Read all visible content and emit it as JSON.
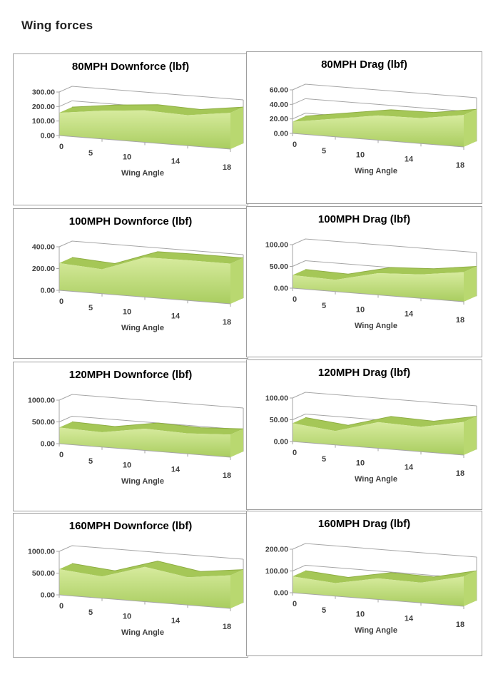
{
  "page": {
    "title": "Wing forces"
  },
  "shared": {
    "x_label": "Wing Angle",
    "categories": [
      "0",
      "5",
      "10",
      "14",
      "18"
    ]
  },
  "colors": {
    "grid": "#a6a6a6",
    "border": "#9e9e9e",
    "area_top": "#a5c757",
    "area_edge": "#8fae44",
    "cap": "#b9d870",
    "face_top": "#d7eb9e",
    "face_bottom": "#a9cd5f",
    "label_text": "#404040",
    "title_text": "#000000"
  },
  "chart_data": [
    {
      "type": "area",
      "title": "80MPH Downforce (lbf)",
      "xlabel": "Wing Angle",
      "categories": [
        0,
        5,
        10,
        14,
        18
      ],
      "values": [
        157,
        194,
        220,
        210,
        250
      ],
      "ylim": [
        0,
        300
      ],
      "yticks": [
        0,
        100,
        200,
        300
      ],
      "ytick_labels": [
        "0.00",
        "100.00",
        "200.00",
        "300.00"
      ]
    },
    {
      "type": "area",
      "title": "80MPH Drag (lbf)",
      "xlabel": "Wing Angle",
      "categories": [
        0,
        5,
        10,
        14,
        18
      ],
      "values": [
        16,
        25,
        34,
        35,
        44
      ],
      "ylim": [
        0,
        60
      ],
      "yticks": [
        0,
        20,
        40,
        60
      ],
      "ytick_labels": [
        "0.00",
        "20.00",
        "40.00",
        "60.00"
      ]
    },
    {
      "type": "area",
      "title": "100MPH Downforce (lbf)",
      "xlabel": "Wing Angle",
      "categories": [
        0,
        5,
        10,
        14,
        18
      ],
      "values": [
        250,
        225,
        365,
        370,
        370
      ],
      "ylim": [
        0,
        400
      ],
      "yticks": [
        0,
        200,
        400
      ],
      "ytick_labels": [
        "0.00",
        "200.00",
        "400.00"
      ]
    },
    {
      "type": "area",
      "title": "100MPH Drag (lbf)",
      "xlabel": "Wing Angle",
      "categories": [
        0,
        5,
        10,
        14,
        18
      ],
      "values": [
        30,
        27,
        50,
        55,
        68
      ],
      "ylim": [
        0,
        100
      ],
      "yticks": [
        0,
        50,
        100
      ],
      "ytick_labels": [
        "0.00",
        "50.00",
        "100.00"
      ]
    },
    {
      "type": "area",
      "title": "120MPH Downforce (lbf)",
      "xlabel": "Wing Angle",
      "categories": [
        0,
        5,
        10,
        14,
        18
      ],
      "values": [
        370,
        340,
        500,
        470,
        520
      ],
      "ylim": [
        0,
        1000
      ],
      "yticks": [
        0,
        500,
        1000
      ],
      "ytick_labels": [
        "0.00",
        "500.00",
        "1000.00"
      ]
    },
    {
      "type": "area",
      "title": "120MPH Drag (lbf)",
      "xlabel": "Wing Angle",
      "categories": [
        0,
        5,
        10,
        14,
        18
      ],
      "values": [
        42,
        32,
        60,
        57,
        76
      ],
      "ylim": [
        0,
        100
      ],
      "yticks": [
        0,
        50,
        100
      ],
      "ytick_labels": [
        "0.00",
        "50.00",
        "100.00"
      ]
    },
    {
      "type": "area",
      "title": "160MPH Downforce (lbf)",
      "xlabel": "Wing Angle",
      "categories": [
        0,
        5,
        10,
        14,
        18
      ],
      "values": [
        590,
        500,
        800,
        640,
        760
      ],
      "ylim": [
        0,
        1000
      ],
      "yticks": [
        0,
        500,
        1000
      ],
      "ytick_labels": [
        "0.00",
        "500.00",
        "1000.00"
      ]
    },
    {
      "type": "area",
      "title": "160MPH Drag (lbf)",
      "xlabel": "Wing Angle",
      "categories": [
        0,
        5,
        10,
        14,
        18
      ],
      "values": [
        75,
        60,
        97,
        93,
        137
      ],
      "ylim": [
        0,
        200
      ],
      "yticks": [
        0,
        100,
        200
      ],
      "ytick_labels": [
        "0.00",
        "100.00",
        "200.00"
      ]
    }
  ]
}
